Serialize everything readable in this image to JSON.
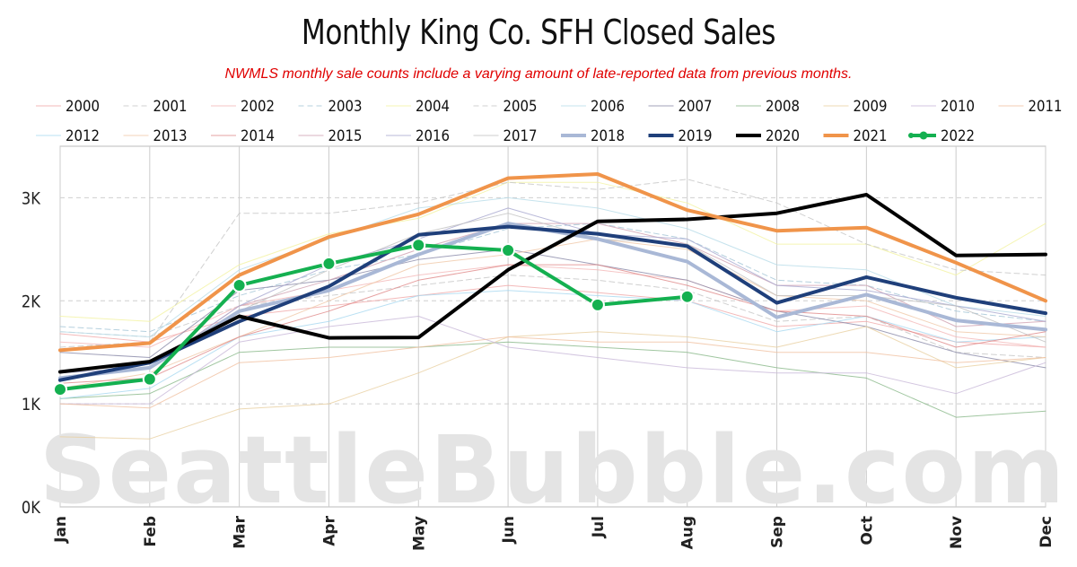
{
  "chart_data": {
    "type": "line",
    "title": "Monthly King Co. SFH Closed Sales",
    "subtitle": "NWMLS monthly sale counts include a varying amount of late-reported data from previous months.",
    "watermark": "SeattleBubble.com",
    "categories": [
      "Jan",
      "Feb",
      "Mar",
      "Apr",
      "May",
      "Jun",
      "Jul",
      "Aug",
      "Sep",
      "Oct",
      "Nov",
      "Dec"
    ],
    "ylim": [
      0,
      3500
    ],
    "yticks": [
      0,
      1000,
      2000,
      3000
    ],
    "ytick_labels": [
      "0K",
      "1K",
      "2K",
      "3K"
    ],
    "grid": true,
    "legend_position": "top",
    "series": [
      {
        "name": "2000",
        "color": "#f0a8a8",
        "style": "thin-solid",
        "values": [
          1680,
          1600,
          1850,
          1950,
          2050,
          2150,
          2080,
          2000,
          1750,
          1800,
          1600,
          1550
        ]
      },
      {
        "name": "2001",
        "color": "#c8c8c8",
        "style": "thin-dashed",
        "values": [
          1700,
          1650,
          1950,
          2050,
          2150,
          2250,
          2200,
          2100,
          1800,
          1850,
          1500,
          1450
        ]
      },
      {
        "name": "2002",
        "color": "#f4b8b8",
        "style": "thin-solid",
        "values": [
          1600,
          1550,
          1950,
          2100,
          2250,
          2350,
          2300,
          2200,
          1900,
          1950,
          1650,
          1550
        ]
      },
      {
        "name": "2003",
        "color": "#a8c8d8",
        "style": "thin-dashed",
        "values": [
          1750,
          1700,
          2050,
          2300,
          2450,
          2700,
          2750,
          2600,
          2200,
          2150,
          1900,
          1800
        ]
      },
      {
        "name": "2004",
        "color": "#f2f2a0",
        "style": "thin-solid",
        "values": [
          1850,
          1800,
          2350,
          2650,
          2800,
          3150,
          3150,
          2950,
          2550,
          2550,
          2250,
          2750
        ]
      },
      {
        "name": "2005",
        "color": "#c8c8c8",
        "style": "thin-dashed",
        "values": [
          1550,
          1600,
          2850,
          2850,
          2950,
          3150,
          3080,
          3180,
          2950,
          2550,
          2300,
          2250
        ]
      },
      {
        "name": "2006",
        "color": "#b8dce8",
        "style": "thin-solid",
        "values": [
          1700,
          1650,
          2300,
          2600,
          2900,
          3000,
          2900,
          2700,
          2350,
          2300,
          1950,
          1850
        ]
      },
      {
        "name": "2007",
        "color": "#8888a8",
        "style": "thin-solid",
        "values": [
          1500,
          1450,
          2100,
          2200,
          2400,
          2500,
          2350,
          2200,
          1900,
          1750,
          1500,
          1350
        ]
      },
      {
        "name": "2008",
        "color": "#88b888",
        "style": "thin-solid",
        "values": [
          1050,
          1100,
          1500,
          1550,
          1550,
          1600,
          1550,
          1500,
          1350,
          1250,
          870,
          930
        ]
      },
      {
        "name": "2009",
        "color": "#e8cfa0",
        "style": "thin-solid",
        "values": [
          680,
          660,
          950,
          1000,
          1300,
          1650,
          1700,
          1650,
          1550,
          1750,
          1350,
          1450
        ]
      },
      {
        "name": "2010",
        "color": "#c8b8d8",
        "style": "thin-solid",
        "values": [
          1000,
          1000,
          1600,
          1750,
          1850,
          1550,
          1450,
          1350,
          1300,
          1300,
          1100,
          1400
        ]
      },
      {
        "name": "2011",
        "color": "#f0c0a0",
        "style": "thin-solid",
        "values": [
          1000,
          960,
          1400,
          1450,
          1550,
          1650,
          1600,
          1600,
          1500,
          1500,
          1400,
          1450
        ]
      },
      {
        "name": "2012",
        "color": "#a8d8f0",
        "style": "thin-solid",
        "values": [
          1050,
          1150,
          1650,
          1800,
          2050,
          2100,
          2050,
          2000,
          1700,
          1850,
          1600,
          1650
        ]
      },
      {
        "name": "2013",
        "color": "#f0c8a8",
        "style": "thin-solid",
        "values": [
          1150,
          1300,
          1650,
          2000,
          2350,
          2450,
          2600,
          2500,
          2050,
          2000,
          1700,
          1650
        ]
      },
      {
        "name": "2014",
        "color": "#e08888",
        "style": "thin-solid",
        "values": [
          1200,
          1250,
          1650,
          1900,
          2200,
          2350,
          2350,
          2150,
          1900,
          1850,
          1550,
          1700
        ]
      },
      {
        "name": "2015",
        "color": "#d0a0b0",
        "style": "thin-solid",
        "values": [
          1250,
          1350,
          1950,
          2200,
          2500,
          2750,
          2750,
          2550,
          2150,
          2150,
          1750,
          1800
        ]
      },
      {
        "name": "2016",
        "color": "#a8a8d0",
        "style": "thin-solid",
        "values": [
          1300,
          1350,
          1950,
          2350,
          2600,
          2900,
          2650,
          2600,
          2150,
          2100,
          1950,
          1800
        ]
      },
      {
        "name": "2017",
        "color": "#c0c0c0",
        "style": "thin-solid",
        "values": [
          1300,
          1400,
          1900,
          2300,
          2650,
          2850,
          2600,
          2550,
          2050,
          2050,
          1950,
          1600
        ]
      },
      {
        "name": "2018",
        "color": "#a9b8d6",
        "style": "thick",
        "values": [
          1250,
          1350,
          1900,
          2100,
          2450,
          2750,
          2600,
          2380,
          1840,
          2060,
          1810,
          1720
        ]
      },
      {
        "name": "2019",
        "color": "#1f3f7a",
        "style": "thick",
        "values": [
          1230,
          1400,
          1800,
          2140,
          2640,
          2720,
          2650,
          2530,
          1980,
          2230,
          2030,
          1880
        ]
      },
      {
        "name": "2020",
        "color": "#000000",
        "style": "thick",
        "values": [
          1310,
          1410,
          1850,
          1640,
          1645,
          2300,
          2770,
          2790,
          2850,
          3030,
          2440,
          2450
        ]
      },
      {
        "name": "2021",
        "color": "#f0944a",
        "style": "thick",
        "values": [
          1520,
          1590,
          2250,
          2620,
          2840,
          3190,
          3230,
          2880,
          2680,
          2710,
          2370,
          2000
        ]
      },
      {
        "name": "2022",
        "color": "#14b050",
        "style": "thick-markers",
        "values": [
          1140,
          1240,
          2150,
          2360,
          2540,
          2490,
          1960,
          2040,
          null,
          null,
          null,
          null
        ]
      }
    ]
  }
}
